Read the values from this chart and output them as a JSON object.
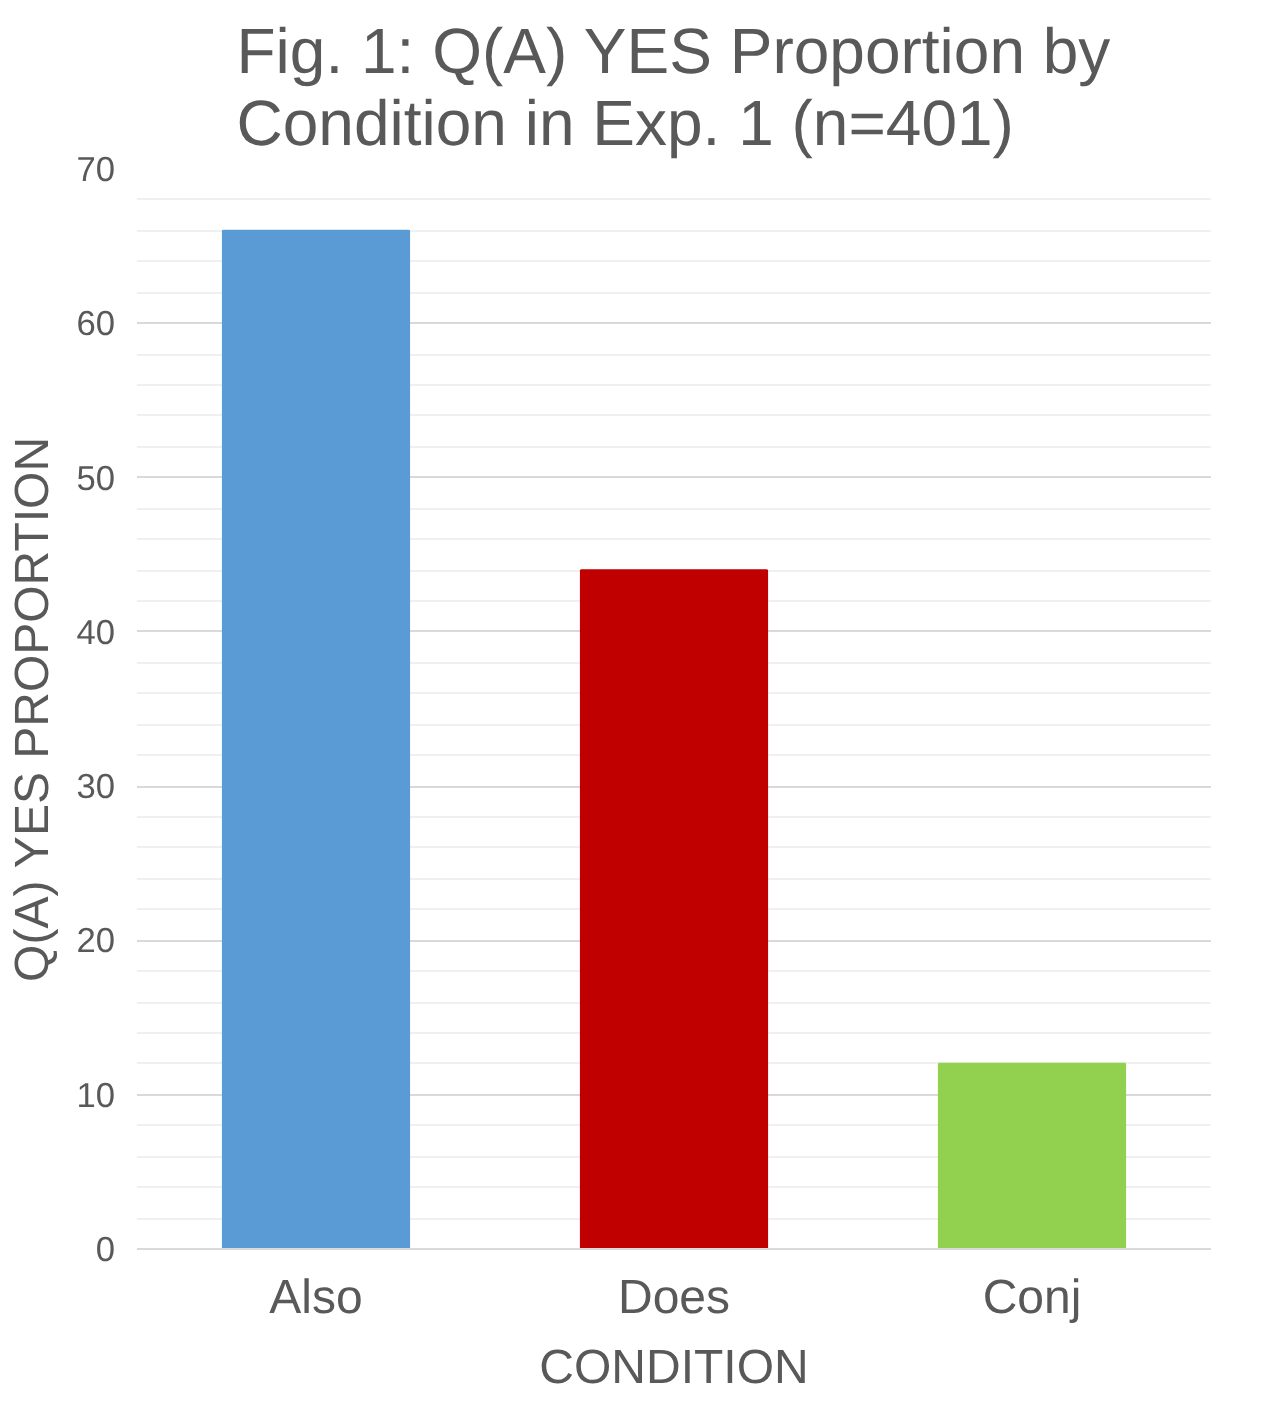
{
  "chart_data": {
    "type": "bar",
    "title": "Fig. 1: Q(A) YES Proportion by Condition in Exp. 1 (n=401)",
    "xlabel": "CONDITION",
    "ylabel": "Q(A) YES PROPORTION",
    "categories": [
      "Also",
      "Does",
      "Conj"
    ],
    "values": [
      66,
      44,
      12
    ],
    "colors": [
      "#5b9bd5",
      "#c00000",
      "#92d050"
    ],
    "ylim": [
      0,
      70
    ],
    "yticks": [
      0,
      10,
      20,
      30,
      40,
      50,
      60,
      70
    ],
    "grid": "y"
  }
}
